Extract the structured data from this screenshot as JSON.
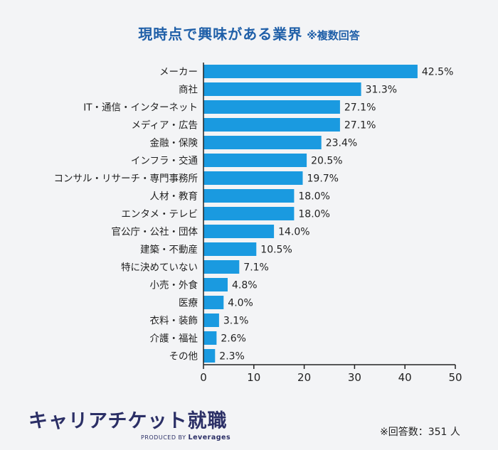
{
  "header": {
    "title": "現時点で興味がある業界",
    "note": "※複数回答"
  },
  "chart_data": {
    "type": "bar",
    "orientation": "horizontal",
    "title": "現時点で興味がある業界",
    "subtitle": "※複数回答",
    "categories": [
      "メーカー",
      "商社",
      "IT・通信・インターネット",
      "メディア・広告",
      "金融・保険",
      "インフラ・交通",
      "コンサル・リサーチ・専門事務所",
      "人材・教育",
      "エンタメ・テレビ",
      "官公庁・公社・団体",
      "建築・不動産",
      "特に決めていない",
      "小売・外食",
      "医療",
      "衣料・装飾",
      "介護・福祉",
      "その他"
    ],
    "values": [
      42.5,
      31.3,
      27.1,
      27.1,
      23.4,
      20.5,
      19.7,
      18.0,
      18.0,
      14.0,
      10.5,
      7.1,
      4.8,
      4.0,
      3.1,
      2.6,
      2.3
    ],
    "value_labels": [
      "42.5%",
      "31.3%",
      "27.1%",
      "27.1%",
      "23.4%",
      "20.5%",
      "19.7%",
      "18.0%",
      "18.0%",
      "14.0%",
      "10.5%",
      "7.1%",
      "4.8%",
      "4.0%",
      "3.1%",
      "2.6%",
      "2.3%"
    ],
    "xlim": [
      0,
      50
    ],
    "xticks": [
      "0",
      "10",
      "20",
      "30",
      "40",
      "50"
    ],
    "bar_color": "#1a9ae0",
    "grid": false,
    "legend": "none"
  },
  "brand": {
    "name": "キャリアチケット就職",
    "produced_by": "PRODUCED BY",
    "company": "Leverages"
  },
  "footnote": "※回答数：351 人"
}
